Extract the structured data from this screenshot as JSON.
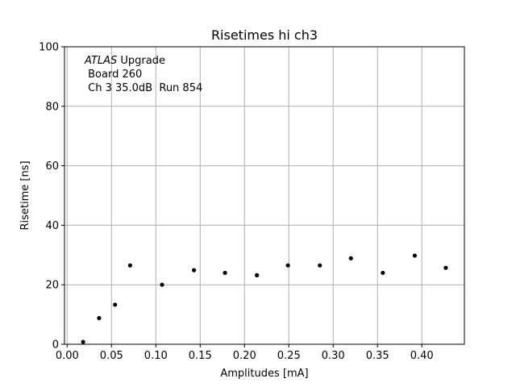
{
  "chart_data": {
    "type": "scatter",
    "title": "Risetimes hi ch3",
    "xlabel": "Amplitudes [mA]",
    "ylabel": "Risetime [ns]",
    "xlim": [
      -0.003,
      0.448
    ],
    "ylim": [
      0,
      100
    ],
    "xticks": [
      0.0,
      0.05,
      0.1,
      0.15,
      0.2,
      0.25,
      0.3,
      0.35,
      0.4
    ],
    "xtick_labels": [
      "0.00",
      "0.05",
      "0.10",
      "0.15",
      "0.20",
      "0.25",
      "0.30",
      "0.35",
      "0.40"
    ],
    "yticks": [
      0,
      20,
      40,
      60,
      80,
      100
    ],
    "ytick_labels": [
      "0",
      "20",
      "40",
      "60",
      "80",
      "100"
    ],
    "grid": true,
    "marker_color": "#000000",
    "annotation": {
      "line1_italic": "ATLAS",
      "line1_rest": " Upgrade",
      "line2": " Board 260",
      "line3": " Ch 3 35.0dB  Run 854"
    },
    "series": [
      {
        "x": [
          0.018,
          0.036,
          0.054,
          0.071,
          0.107,
          0.143,
          0.178,
          0.214,
          0.249,
          0.285,
          0.32,
          0.356,
          0.392,
          0.427
        ],
        "y": [
          0.8,
          8.8,
          13.3,
          26.5,
          20.0,
          24.9,
          24.0,
          23.2,
          26.5,
          26.5,
          28.9,
          24.0,
          29.8,
          25.7
        ]
      }
    ]
  }
}
